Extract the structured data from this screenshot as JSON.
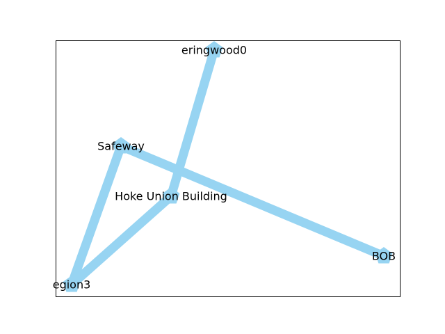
{
  "graph": {
    "nodes": [
      {
        "id": "eringwood0",
        "label": "eringwood0"
      },
      {
        "id": "Safeway",
        "label": "Safeway"
      },
      {
        "id": "Hoke Union Building",
        "label": "Hoke Union Building"
      },
      {
        "id": "BOB",
        "label": "BOB"
      },
      {
        "id": "egion3",
        "label": "egion3"
      }
    ],
    "edges": [
      {
        "source": "eringwood0",
        "target": "Hoke Union Building"
      },
      {
        "source": "Safeway",
        "target": "BOB"
      },
      {
        "source": "Safeway",
        "target": "egion3"
      },
      {
        "source": "Hoke Union Building",
        "target": "egion3"
      }
    ]
  },
  "style": {
    "edge_color": "#97d4f2",
    "node_color": "#97d4f2",
    "node_shape": "pentagon",
    "frame_color": "#000000"
  }
}
